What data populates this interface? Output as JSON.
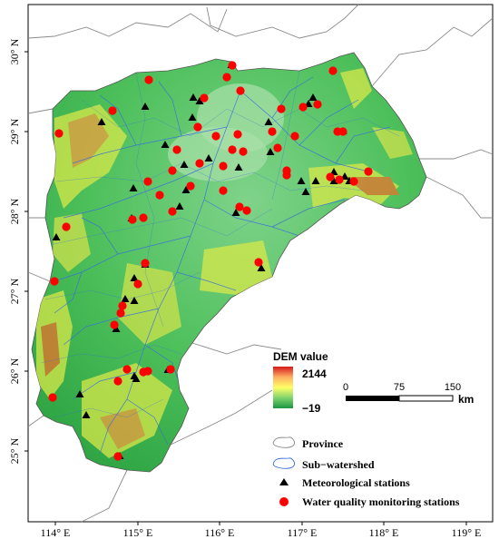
{
  "map": {
    "lon_ticks": [
      "114° E",
      "115° E",
      "116° E",
      "117° E",
      "118° E",
      "119° E"
    ],
    "lat_ticks": [
      "30° N",
      "29° N",
      "28° N",
      "27° N",
      "26° N",
      "25° N"
    ]
  },
  "dem_legend": {
    "title": "DEM value",
    "max_label": "2144",
    "min_label": "−19",
    "colors": [
      "#d7191c",
      "#fdae61",
      "#ffff66",
      "#7fd36e",
      "#1a9641"
    ]
  },
  "scale_bar": {
    "labels": [
      "0",
      "75",
      "150"
    ],
    "unit": "km"
  },
  "legend": {
    "province": "Province",
    "subwatershed": "Sub−watershed",
    "met_stations": "Meteorological stations",
    "wq_stations": "Water quality monitoring stations"
  },
  "colors": {
    "met_marker": "#000000",
    "wq_marker": "#ff0000",
    "river": "#3a6fd8",
    "province_border": "#8a8a8a"
  }
}
